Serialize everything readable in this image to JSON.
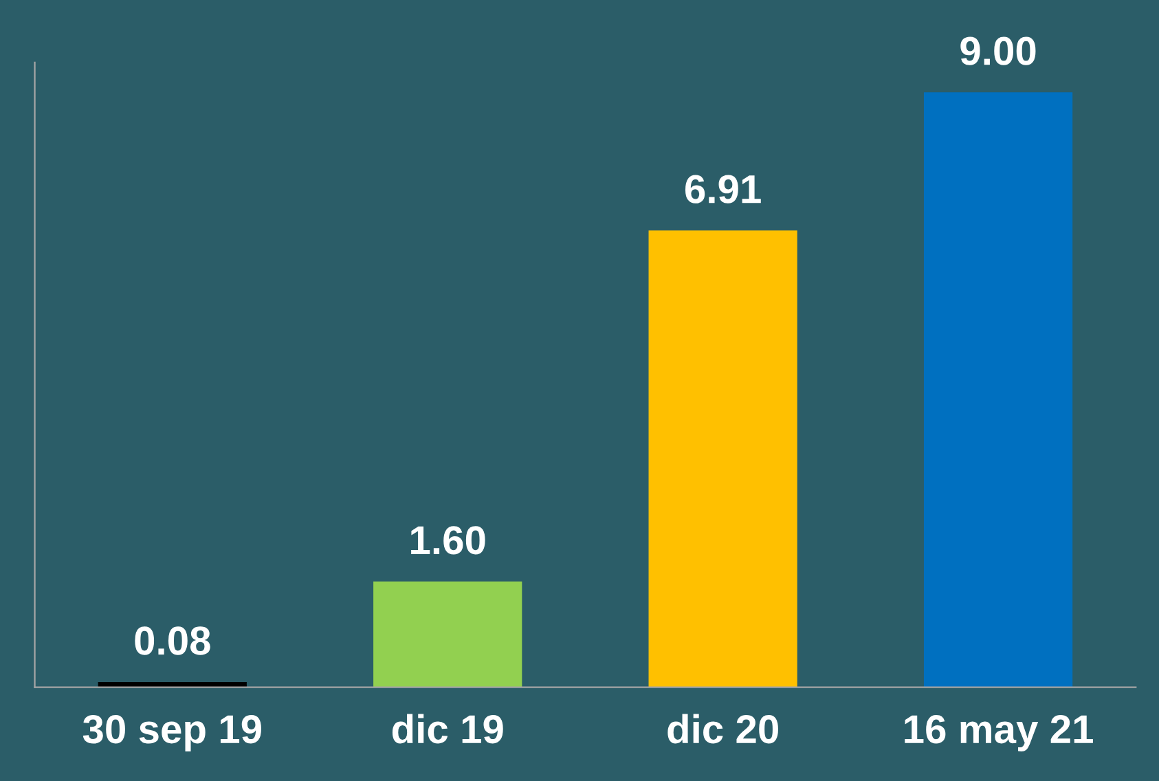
{
  "chart_data": {
    "type": "bar",
    "categories": [
      "30 sep 19",
      "dic 19",
      "dic 20",
      "16 may 21"
    ],
    "values": [
      0.08,
      1.6,
      6.91,
      9.0
    ],
    "value_labels": [
      "0.08",
      "1.60",
      "6.91",
      "9.00"
    ],
    "colors": [
      "#000000",
      "#92d050",
      "#ffc000",
      "#0070c0"
    ],
    "tick_labels": "x",
    "grid": false,
    "legend": false
  }
}
